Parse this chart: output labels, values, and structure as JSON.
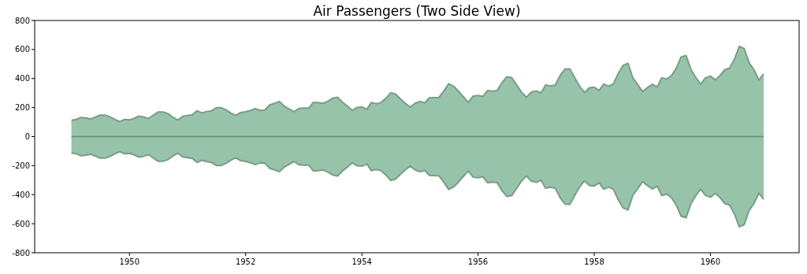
{
  "chart_data": {
    "type": "area",
    "title": "Air Passengers (Two Side View)",
    "x": [
      "1949-01",
      "1949-02",
      "1949-03",
      "1949-04",
      "1949-05",
      "1949-06",
      "1949-07",
      "1949-08",
      "1949-09",
      "1949-10",
      "1949-11",
      "1949-12",
      "1950-01",
      "1950-02",
      "1950-03",
      "1950-04",
      "1950-05",
      "1950-06",
      "1950-07",
      "1950-08",
      "1950-09",
      "1950-10",
      "1950-11",
      "1950-12",
      "1951-01",
      "1951-02",
      "1951-03",
      "1951-04",
      "1951-05",
      "1951-06",
      "1951-07",
      "1951-08",
      "1951-09",
      "1951-10",
      "1951-11",
      "1951-12",
      "1952-01",
      "1952-02",
      "1952-03",
      "1952-04",
      "1952-05",
      "1952-06",
      "1952-07",
      "1952-08",
      "1952-09",
      "1952-10",
      "1952-11",
      "1952-12",
      "1953-01",
      "1953-02",
      "1953-03",
      "1953-04",
      "1953-05",
      "1953-06",
      "1953-07",
      "1953-08",
      "1953-09",
      "1953-10",
      "1953-11",
      "1953-12",
      "1954-01",
      "1954-02",
      "1954-03",
      "1954-04",
      "1954-05",
      "1954-06",
      "1954-07",
      "1954-08",
      "1954-09",
      "1954-10",
      "1954-11",
      "1954-12",
      "1955-01",
      "1955-02",
      "1955-03",
      "1955-04",
      "1955-05",
      "1955-06",
      "1955-07",
      "1955-08",
      "1955-09",
      "1955-10",
      "1955-11",
      "1955-12",
      "1956-01",
      "1956-02",
      "1956-03",
      "1956-04",
      "1956-05",
      "1956-06",
      "1956-07",
      "1956-08",
      "1956-09",
      "1956-10",
      "1956-11",
      "1956-12",
      "1957-01",
      "1957-02",
      "1957-03",
      "1957-04",
      "1957-05",
      "1957-06",
      "1957-07",
      "1957-08",
      "1957-09",
      "1957-10",
      "1957-11",
      "1957-12",
      "1958-01",
      "1958-02",
      "1958-03",
      "1958-04",
      "1958-05",
      "1958-06",
      "1958-07",
      "1958-08",
      "1958-09",
      "1958-10",
      "1958-11",
      "1958-12",
      "1959-01",
      "1959-02",
      "1959-03",
      "1959-04",
      "1959-05",
      "1959-06",
      "1959-07",
      "1959-08",
      "1959-09",
      "1959-10",
      "1959-11",
      "1959-12",
      "1960-01",
      "1960-02",
      "1960-03",
      "1960-04",
      "1960-05",
      "1960-06",
      "1960-07",
      "1960-08",
      "1960-09",
      "1960-10",
      "1960-11",
      "1960-12"
    ],
    "series": [
      {
        "color": "#96c3a9",
        "values": [
          112,
          118,
          132,
          129,
          121,
          135,
          148,
          148,
          136,
          119,
          104,
          118,
          115,
          126,
          141,
          135,
          125,
          149,
          170,
          170,
          158,
          133,
          114,
          140,
          145,
          150,
          178,
          163,
          172,
          178,
          199,
          199,
          184,
          162,
          146,
          166,
          171,
          180,
          193,
          181,
          183,
          218,
          230,
          242,
          209,
          191,
          172,
          194,
          196,
          196,
          236,
          235,
          229,
          243,
          264,
          272,
          237,
          211,
          180,
          201,
          204,
          188,
          235,
          227,
          234,
          264,
          302,
          293,
          259,
          229,
          203,
          229,
          242,
          233,
          267,
          269,
          270,
          315,
          364,
          347,
          312,
          274,
          237,
          278,
          284,
          277,
          317,
          313,
          318,
          374,
          413,
          405,
          355,
          306,
          271,
          306,
          315,
          301,
          356,
          348,
          355,
          422,
          465,
          467,
          404,
          347,
          305,
          336,
          340,
          318,
          362,
          348,
          363,
          435,
          491,
          505,
          404,
          359,
          310,
          337,
          360,
          342,
          406,
          396,
          420,
          472,
          548,
          559,
          463,
          407,
          362,
          405,
          417,
          391,
          419,
          461,
          472,
          535,
          622,
          606,
          508,
          461,
          390,
          432
        ]
      },
      {
        "color": "#96c3a9",
        "values": [
          -112,
          -118,
          -132,
          -129,
          -121,
          -135,
          -148,
          -148,
          -136,
          -119,
          -104,
          -118,
          -115,
          -126,
          -141,
          -135,
          -125,
          -149,
          -170,
          -170,
          -158,
          -133,
          -114,
          -140,
          -145,
          -150,
          -178,
          -163,
          -172,
          -178,
          -199,
          -199,
          -184,
          -162,
          -146,
          -166,
          -171,
          -180,
          -193,
          -181,
          -183,
          -218,
          -230,
          -242,
          -209,
          -191,
          -172,
          -194,
          -196,
          -196,
          -236,
          -235,
          -229,
          -243,
          -264,
          -272,
          -237,
          -211,
          -180,
          -201,
          -204,
          -188,
          -235,
          -227,
          -234,
          -264,
          -302,
          -293,
          -259,
          -229,
          -203,
          -229,
          -242,
          -233,
          -267,
          -269,
          -270,
          -315,
          -364,
          -347,
          -312,
          -274,
          -237,
          -278,
          -284,
          -277,
          -317,
          -313,
          -318,
          -374,
          -413,
          -405,
          -355,
          -306,
          -271,
          -306,
          -315,
          -301,
          -356,
          -348,
          -355,
          -422,
          -465,
          -467,
          -404,
          -347,
          -305,
          -336,
          -340,
          -318,
          -362,
          -348,
          -363,
          -435,
          -491,
          -505,
          -404,
          -359,
          -310,
          -337,
          -360,
          -342,
          -406,
          -396,
          -420,
          -472,
          -548,
          -559,
          -463,
          -407,
          -362,
          -405,
          -417,
          -391,
          -419,
          -461,
          -472,
          -535,
          -622,
          -606,
          -508,
          -461,
          -390,
          -432
        ]
      }
    ],
    "xlim": [
      "1948-05-15",
      "1961-07-12"
    ],
    "xticks": [
      "1950",
      "1952",
      "1954",
      "1956",
      "1958",
      "1960"
    ],
    "ylim": [
      -800,
      800
    ],
    "yticks": [
      -800,
      -600,
      -400,
      -200,
      0,
      200,
      400,
      600,
      800
    ],
    "ref_lines": [
      {
        "axis": "y",
        "value": 0,
        "color": "#6b8a77"
      }
    ]
  }
}
